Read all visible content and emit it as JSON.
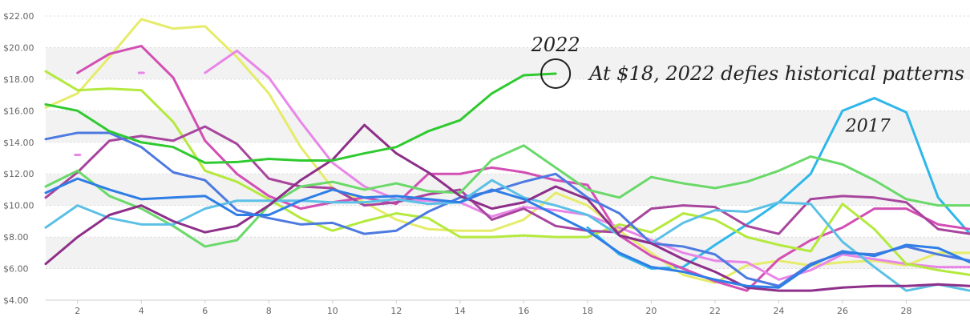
{
  "chart_data": {
    "type": "line",
    "x": [
      1,
      2,
      3,
      4,
      5,
      6,
      7,
      8,
      9,
      10,
      11,
      12,
      13,
      14,
      15,
      16,
      17,
      18,
      19,
      20,
      21,
      22,
      23,
      24,
      25,
      26,
      27,
      28,
      29,
      30
    ],
    "xticks": [
      2,
      4,
      6,
      8,
      10,
      12,
      14,
      16,
      18,
      20,
      22,
      24,
      26,
      28
    ],
    "ylim": [
      4,
      22
    ],
    "yticks": [
      "$4.00",
      "$6.00",
      "$8.00",
      "$10.00",
      "$12.00",
      "$14.00",
      "$16.00",
      "$18.00",
      "$20.00",
      "$22.00"
    ],
    "grid": "banded",
    "series": [
      {
        "color": "#2fca2f",
        "width": 3,
        "values": [
          16.4,
          16.0,
          14.7,
          14.0,
          13.7,
          12.7,
          12.75,
          12.95,
          12.85,
          12.85,
          13.3,
          13.7,
          14.7,
          15.4,
          17.1,
          18.25,
          18.35,
          null,
          null,
          null,
          null,
          null,
          null,
          null,
          null,
          null,
          null,
          null,
          null,
          null
        ]
      },
      {
        "color": "#2fb7ea",
        "width": 3,
        "values": [
          null,
          null,
          null,
          null,
          null,
          null,
          null,
          null,
          null,
          null,
          null,
          null,
          null,
          null,
          null,
          null,
          null,
          8.6,
          6.9,
          6.0,
          6.1,
          7.5,
          8.8,
          10.2,
          12.0,
          16.0,
          16.8,
          15.9,
          10.5,
          8.2
        ]
      },
      {
        "color": "#e5ec6a",
        "width": 3,
        "values": [
          16.2,
          17.1,
          19.4,
          21.8,
          21.2,
          21.35,
          19.4,
          17.1,
          13.7,
          11.1,
          10.2,
          9.1,
          8.5,
          8.4,
          8.4,
          9.1,
          10.8,
          10.0,
          8.4,
          7.0,
          5.6,
          5.1,
          6.2,
          6.5,
          6.2,
          6.4,
          6.5,
          6.2,
          7.0,
          7.0
        ]
      },
      {
        "color": "#d34fb4",
        "width": 3,
        "values": [
          null,
          18.4,
          19.6,
          20.1,
          18.1,
          14.1,
          12.0,
          10.6,
          9.8,
          10.2,
          10.5,
          10.1,
          12.0,
          12.0,
          12.4,
          12.1,
          11.6,
          11.3,
          8.1,
          6.8,
          6.0,
          5.2,
          4.6,
          6.6,
          7.8,
          8.6,
          9.8,
          9.8,
          8.8,
          8.5
        ]
      },
      {
        "color": "#e886e8",
        "width": 3,
        "values": [
          null,
          13.2,
          null,
          18.4,
          null,
          18.4,
          19.8,
          18.1,
          15.3,
          12.7,
          11.2,
          10.4,
          10.3,
          10.2,
          9.3,
          9.9,
          9.7,
          9.4,
          8.6,
          7.8,
          7.0,
          6.5,
          6.4,
          5.3,
          5.9,
          6.9,
          6.6,
          6.3,
          6.1,
          6.1
        ]
      },
      {
        "color": "#b4e93e",
        "width": 3,
        "values": [
          18.5,
          17.3,
          17.4,
          17.3,
          15.3,
          12.2,
          11.5,
          10.4,
          9.2,
          8.4,
          9.0,
          9.5,
          9.2,
          8.0,
          8.0,
          8.1,
          8.0,
          8.0,
          8.8,
          8.3,
          9.5,
          9.1,
          8.0,
          7.5,
          7.1,
          10.1,
          8.5,
          6.3,
          5.9,
          5.6
        ]
      },
      {
        "color": "#a8469e",
        "width": 3,
        "values": [
          10.5,
          12.1,
          14.1,
          14.4,
          14.1,
          15.0,
          13.9,
          11.7,
          11.2,
          11.1,
          10.0,
          10.2,
          10.7,
          11.0,
          9.1,
          9.8,
          8.7,
          8.4,
          8.3,
          9.8,
          10.0,
          9.9,
          8.7,
          8.2,
          10.4,
          10.6,
          10.5,
          10.2,
          8.5,
          8.2
        ]
      },
      {
        "color": "#4d7ae0",
        "width": 3,
        "values": [
          14.2,
          14.6,
          14.6,
          13.7,
          12.1,
          11.6,
          9.7,
          9.2,
          8.8,
          8.9,
          8.2,
          8.4,
          9.6,
          10.5,
          10.9,
          11.5,
          12.0,
          10.5,
          9.5,
          7.6,
          7.4,
          6.9,
          5.4,
          4.9,
          6.3,
          7.0,
          6.9,
          7.4,
          6.9,
          6.5
        ]
      },
      {
        "color": "#6ad96a",
        "width": 3,
        "values": [
          11.2,
          12.2,
          10.6,
          9.8,
          8.7,
          7.4,
          7.8,
          10.0,
          11.2,
          11.5,
          11.0,
          11.4,
          10.9,
          10.8,
          12.9,
          13.8,
          12.4,
          11.0,
          10.5,
          11.8,
          11.4,
          11.1,
          11.5,
          12.2,
          13.1,
          12.6,
          11.6,
          10.4,
          10.0,
          10.0
        ]
      },
      {
        "color": "#5cc0e6",
        "width": 3,
        "values": [
          8.6,
          10.0,
          9.2,
          8.8,
          8.8,
          9.8,
          10.3,
          10.3,
          10.3,
          10.2,
          10.2,
          10.4,
          10.1,
          10.2,
          11.6,
          10.5,
          10.0,
          9.4,
          8.1,
          7.6,
          8.9,
          9.7,
          9.6,
          10.2,
          10.1,
          7.7,
          6.1,
          4.6,
          5.0,
          4.6
        ]
      },
      {
        "color": "#8e2f8a",
        "width": 3,
        "values": [
          6.3,
          8.0,
          9.4,
          10.0,
          9.0,
          8.3,
          8.7,
          10.0,
          11.6,
          12.9,
          15.1,
          13.3,
          12.1,
          10.6,
          9.8,
          10.2,
          11.2,
          10.4,
          8.1,
          7.6,
          6.6,
          5.8,
          4.8,
          4.6,
          4.6,
          4.8,
          4.9,
          4.9,
          5.0,
          4.9
        ]
      },
      {
        "color": "#2f7ee6",
        "width": 3,
        "values": [
          10.8,
          11.7,
          11.0,
          10.4,
          10.5,
          10.6,
          9.4,
          9.4,
          10.3,
          11.0,
          10.5,
          10.6,
          10.4,
          10.2,
          11.0,
          10.4,
          9.4,
          8.4,
          7.0,
          6.1,
          5.8,
          5.3,
          4.9,
          4.8,
          6.2,
          7.1,
          6.8,
          7.5,
          7.3,
          6.4
        ]
      }
    ],
    "annotations": [
      {
        "text": "2022",
        "x": 17,
        "y": 18.35,
        "kind": "circle-label"
      },
      {
        "text": "At $18, 2022 defies historical patterns",
        "x": 17,
        "y": 18.35,
        "kind": "callout"
      },
      {
        "text": "2017",
        "x": 27,
        "y": 16.8,
        "kind": "label"
      }
    ]
  }
}
